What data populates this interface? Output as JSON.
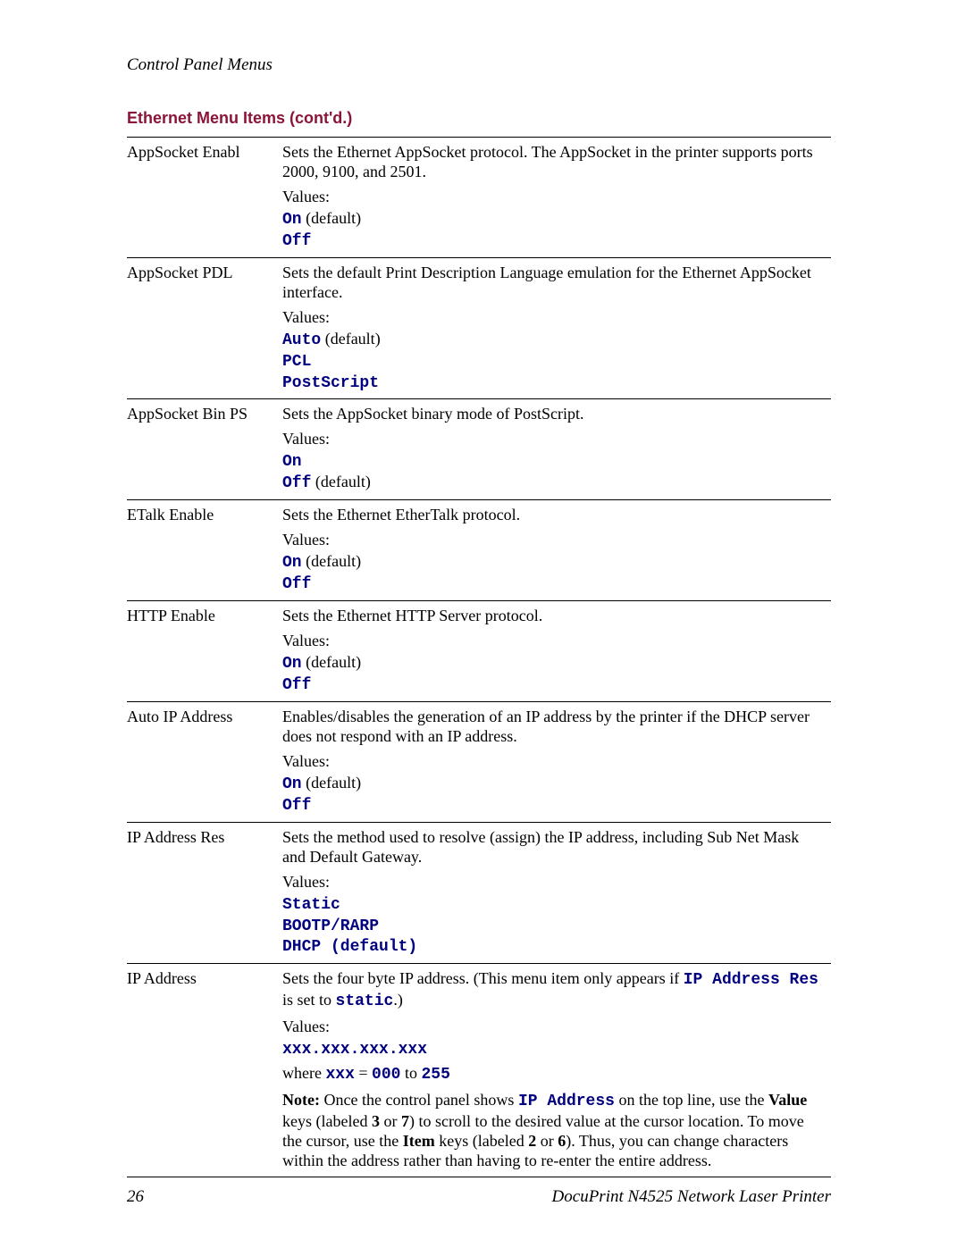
{
  "header": {
    "title": "Control Panel Menus"
  },
  "subheading": "Ethernet Menu Items (cont'd.)",
  "colors": {
    "accent": "#8a1538",
    "mono": "#000080",
    "text": "#000000",
    "rule": "#000000",
    "background": "#ffffff"
  },
  "typography": {
    "body_family": "Georgia, 'Times New Roman', serif",
    "mono_family": "'Courier New', Courier, monospace",
    "heading_family": "Verdana, Arial, sans-serif",
    "body_size_pt": 14,
    "heading_size_pt": 14
  },
  "rows": [
    {
      "name": "AppSocket Enabl",
      "desc": "Sets the Ethernet AppSocket protocol. The AppSocket in the printer supports ports 2000, 9100, and 2501.",
      "values_label": "Values:",
      "options": [
        {
          "code": "On",
          "suffix": "  (default)"
        },
        {
          "code": "Off",
          "suffix": ""
        }
      ]
    },
    {
      "name": "AppSocket PDL",
      "desc": "Sets the default Print Description Language emulation for the Ethernet AppSocket interface.",
      "values_label": "Values:",
      "options": [
        {
          "code": "Auto",
          "suffix": " (default)"
        },
        {
          "code": "PCL",
          "suffix": ""
        },
        {
          "code": "PostScript",
          "suffix": ""
        }
      ]
    },
    {
      "name": "AppSocket Bin PS",
      "desc": "Sets the AppSocket binary mode of PostScript.",
      "values_label": "Values:",
      "options": [
        {
          "code": "On",
          "suffix": ""
        },
        {
          "code": "Off",
          "suffix": " (default)"
        }
      ]
    },
    {
      "name": "ETalk Enable",
      "desc": "Sets the Ethernet EtherTalk protocol.",
      "values_label": "Values:",
      "options": [
        {
          "code": "On",
          "suffix": "  (default)"
        },
        {
          "code": "Off",
          "suffix": ""
        }
      ]
    },
    {
      "name": "HTTP Enable",
      "desc": "Sets the Ethernet HTTP Server protocol.",
      "values_label": "Values:",
      "options": [
        {
          "code": "On",
          "suffix": "  (default)"
        },
        {
          "code": "Off",
          "suffix": ""
        }
      ]
    },
    {
      "name": "Auto IP Address",
      "desc": "Enables/disables the generation of an IP address by the printer if the DHCP server does not respond with an IP address.",
      "values_label": "Values:",
      "options": [
        {
          "code": "On",
          "suffix": "  (default)"
        },
        {
          "code": "Off",
          "suffix": ""
        }
      ]
    },
    {
      "name": "IP Address Res",
      "desc": "Sets the method used to resolve (assign) the IP address, including Sub Net Mask and Default Gateway.",
      "values_label": "Values:",
      "options": [
        {
          "code": "Static",
          "suffix": ""
        },
        {
          "code": "BOOTP/RARP",
          "suffix": ""
        },
        {
          "code": "DHCP (default)",
          "suffix": ""
        }
      ]
    },
    {
      "name": "IP Address",
      "desc_pre": "Sets the four byte IP address. (This menu item only appears if ",
      "desc_code1": "IP Address Res",
      "desc_mid": " is set to ",
      "desc_code2": "static",
      "desc_post": ".)",
      "values_label": "Values:",
      "options": [
        {
          "code": "xxx.xxx.xxx.xxx",
          "suffix": ""
        }
      ],
      "where_pre": "where ",
      "where_code1": "xxx",
      "where_mid": " = ",
      "where_code2": "000",
      "where_to": " to ",
      "where_code3": "255",
      "note_bold1": "Note:",
      "note_t1": " Once the control panel shows ",
      "note_code1": "IP Address",
      "note_t2": " on the top line, use the ",
      "note_bold2": "Value",
      "note_t3": " keys (labeled ",
      "note_bold3": "3",
      "note_t4": " or ",
      "note_bold4": "7",
      "note_t5": ") to scroll to the desired value at the cursor location. To move the cursor, use the ",
      "note_bold5": "Item",
      "note_t6": " keys (labeled ",
      "note_bold6": "2",
      "note_t7": " or ",
      "note_bold7": "6",
      "note_t8": "). Thus, you can change characters within the address rather than having to re-enter the entire address."
    }
  ],
  "footer": {
    "page": "26",
    "doc": "DocuPrint N4525 Network Laser Printer"
  }
}
